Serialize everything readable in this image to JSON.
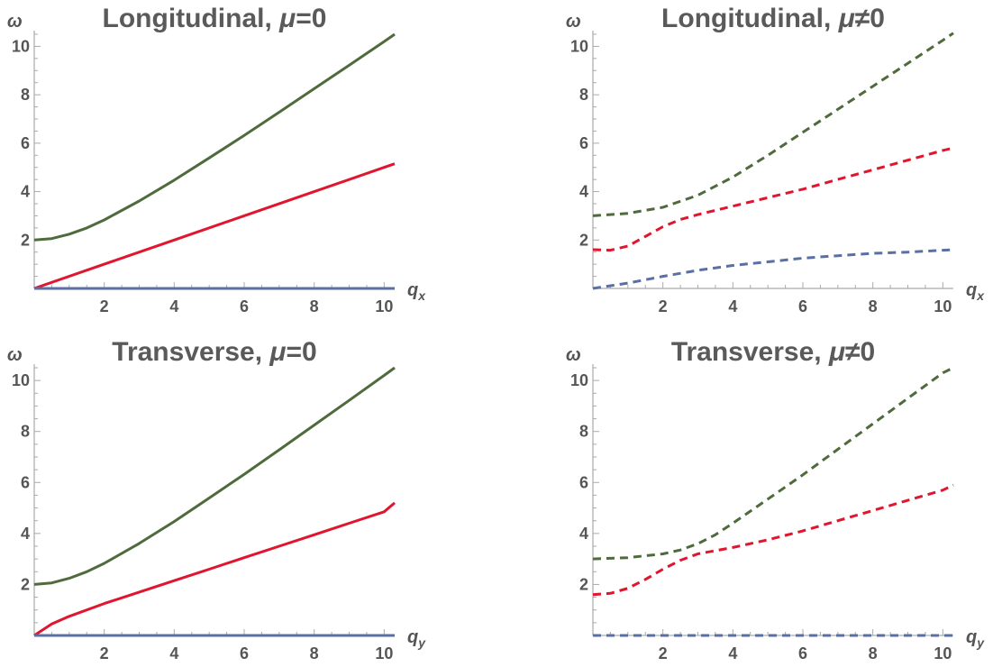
{
  "chart_data": [
    {
      "type": "line",
      "title_main": "Longitudinal, ",
      "title_symbol": "μ",
      "title_rel": "=0",
      "xlabel": "q",
      "xlabel_sub": "x",
      "ylabel": "ω",
      "xlim": [
        0,
        10.3
      ],
      "ylim": [
        0,
        10.5
      ],
      "xticks": [
        2,
        4,
        6,
        8,
        10
      ],
      "yticks": [
        2,
        4,
        6,
        8,
        10
      ],
      "line_style": "solid",
      "series": [
        {
          "color": "#4f6b3d",
          "x": [
            0,
            0.5,
            1,
            1.5,
            2,
            3,
            4,
            5,
            6,
            7,
            8,
            9,
            10,
            10.3
          ],
          "y": [
            2.0,
            2.06,
            2.24,
            2.5,
            2.83,
            3.61,
            4.47,
            5.39,
            6.32,
            7.28,
            8.25,
            9.22,
            10.2,
            10.5
          ]
        },
        {
          "color": "#e0152e",
          "x": [
            0,
            2,
            4,
            6,
            8,
            10,
            10.3
          ],
          "y": [
            0,
            1.0,
            2.0,
            3.0,
            4.0,
            5.0,
            5.15
          ]
        },
        {
          "color": "#5a6fa3",
          "x": [
            0,
            10.3
          ],
          "y": [
            0,
            0
          ]
        }
      ]
    },
    {
      "type": "line",
      "title_main": "Longitudinal, ",
      "title_symbol": "μ",
      "title_rel": "≠0",
      "xlabel": "q",
      "xlabel_sub": "x",
      "ylabel": "ω",
      "xlim": [
        0,
        10.3
      ],
      "ylim": [
        0,
        10.5
      ],
      "xticks": [
        2,
        4,
        6,
        8,
        10
      ],
      "yticks": [
        2,
        4,
        6,
        8,
        10
      ],
      "line_style": "dashed",
      "series": [
        {
          "color": "#4f6b3d",
          "x": [
            0,
            1,
            2,
            3,
            4,
            5,
            6,
            7,
            8,
            9,
            10,
            10.3
          ],
          "y": [
            3.0,
            3.1,
            3.35,
            3.85,
            4.6,
            5.5,
            6.45,
            7.4,
            8.35,
            9.3,
            10.25,
            10.55
          ]
        },
        {
          "color": "#e0152e",
          "x": [
            0,
            0.5,
            1,
            1.5,
            2,
            2.5,
            3,
            4,
            5,
            6,
            7,
            8,
            9,
            10,
            10.3
          ],
          "y": [
            1.6,
            1.58,
            1.75,
            2.15,
            2.55,
            2.85,
            3.05,
            3.4,
            3.75,
            4.1,
            4.5,
            4.9,
            5.3,
            5.7,
            5.8
          ]
        },
        {
          "color": "#5a6fa3",
          "x": [
            0,
            1,
            2,
            3,
            4,
            5,
            6,
            7,
            8,
            9,
            10,
            10.3
          ],
          "y": [
            0,
            0.22,
            0.5,
            0.75,
            0.95,
            1.1,
            1.25,
            1.35,
            1.45,
            1.5,
            1.58,
            1.6
          ]
        }
      ]
    },
    {
      "type": "line",
      "title_main": "Transverse, ",
      "title_symbol": "μ",
      "title_rel": "=0",
      "xlabel": "q",
      "xlabel_sub": "y",
      "ylabel": "ω",
      "xlim": [
        0,
        10.3
      ],
      "ylim": [
        0,
        10.5
      ],
      "xticks": [
        2,
        4,
        6,
        8,
        10
      ],
      "yticks": [
        2,
        4,
        6,
        8,
        10
      ],
      "line_style": "solid",
      "series": [
        {
          "color": "#4f6b3d",
          "x": [
            0,
            0.5,
            1,
            1.5,
            2,
            3,
            4,
            5,
            6,
            7,
            8,
            9,
            10,
            10.3
          ],
          "y": [
            2.0,
            2.06,
            2.24,
            2.5,
            2.83,
            3.61,
            4.47,
            5.39,
            6.32,
            7.28,
            8.25,
            9.22,
            10.2,
            10.5
          ]
        },
        {
          "color": "#e0152e",
          "x": [
            0,
            0.5,
            1,
            2,
            3,
            4,
            5,
            6,
            7,
            8,
            9,
            10,
            10.3
          ],
          "y": [
            0,
            0.45,
            0.75,
            1.25,
            1.7,
            2.15,
            2.6,
            3.05,
            3.5,
            3.95,
            4.4,
            4.85,
            5.2
          ]
        },
        {
          "color": "#5a6fa3",
          "x": [
            0,
            10.3
          ],
          "y": [
            0,
            0
          ]
        }
      ]
    },
    {
      "type": "line",
      "title_main": "Transverse, ",
      "title_symbol": "μ",
      "title_rel": "≠0",
      "xlabel": "q",
      "xlabel_sub": "y",
      "ylabel": "ω",
      "xlim": [
        0,
        10.3
      ],
      "ylim": [
        0,
        10.5
      ],
      "xticks": [
        2,
        4,
        6,
        8,
        10
      ],
      "yticks": [
        2,
        4,
        6,
        8,
        10
      ],
      "line_style": "dashed",
      "series": [
        {
          "color": "#4f6b3d",
          "x": [
            0,
            1,
            2,
            2.5,
            3,
            3.5,
            4,
            5,
            6,
            7,
            8,
            9,
            10,
            10.3
          ],
          "y": [
            3.0,
            3.05,
            3.2,
            3.35,
            3.6,
            3.95,
            4.4,
            5.35,
            6.3,
            7.3,
            8.3,
            9.3,
            10.3,
            10.5
          ]
        },
        {
          "color": "#e0152e",
          "x": [
            0,
            0.5,
            1,
            1.5,
            2,
            2.5,
            3,
            4,
            5,
            6,
            7,
            8,
            9,
            10,
            10.3
          ],
          "y": [
            1.6,
            1.65,
            1.85,
            2.2,
            2.6,
            2.95,
            3.2,
            3.45,
            3.75,
            4.1,
            4.5,
            4.9,
            5.3,
            5.7,
            5.9
          ]
        },
        {
          "color": "#5a6fa3",
          "x": [
            0,
            10.3
          ],
          "y": [
            0,
            0
          ]
        }
      ]
    }
  ]
}
